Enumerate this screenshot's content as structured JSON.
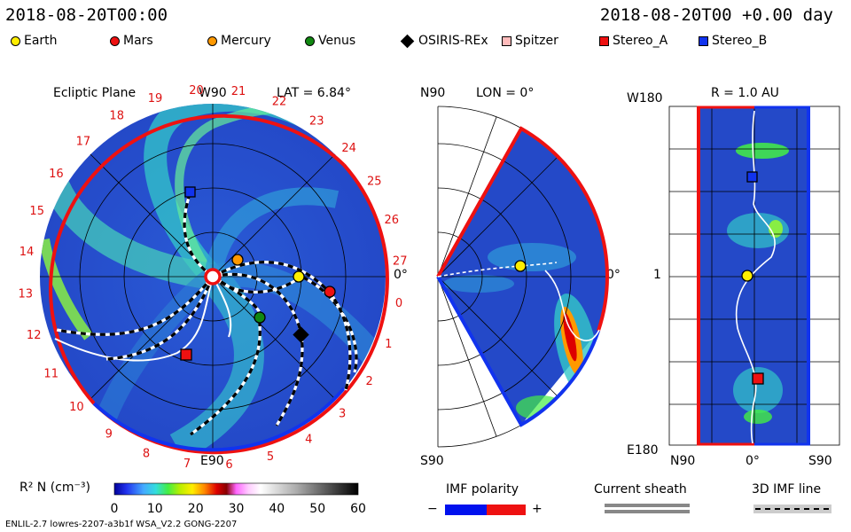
{
  "header": {
    "left_time": "2018-08-20T00:00",
    "right_time": "2018-08-20T00 +0.00 day"
  },
  "legend": [
    {
      "name": "Earth",
      "color": "#ffee00",
      "shape": "circle"
    },
    {
      "name": "Mars",
      "color": "#ee1111",
      "shape": "circle"
    },
    {
      "name": "Mercury",
      "color": "#ff9900",
      "shape": "circle"
    },
    {
      "name": "Venus",
      "color": "#118811",
      "shape": "circle"
    },
    {
      "name": "OSIRIS-REx",
      "color": "#000000",
      "shape": "diamond"
    },
    {
      "name": "Spitzer",
      "color": "#ffbbbb",
      "shape": "square"
    },
    {
      "name": "Stereo_A",
      "color": "#ee1111",
      "shape": "square"
    },
    {
      "name": "Stereo_B",
      "color": "#1133ee",
      "shape": "square"
    }
  ],
  "panels": {
    "ecliptic": {
      "title": "Ecliptic Plane",
      "top_label": "W90",
      "lat_label": "LAT = 6.84°",
      "bottom_label": "E90",
      "right_label": "0°",
      "carrington": [
        "20",
        "21",
        "22",
        "23",
        "24",
        "25",
        "26",
        "27",
        "0",
        "1",
        "2",
        "3",
        "4",
        "5",
        "6",
        "7",
        "8",
        "9",
        "10",
        "11",
        "12",
        "13",
        "14",
        "15",
        "16",
        "17",
        "18",
        "19"
      ]
    },
    "meridional": {
      "top_left": "N90",
      "lon_label": "LON = 0°",
      "bottom_left": "S90",
      "right_label": "0°"
    },
    "radial": {
      "r_label": "R = 1.0 AU",
      "top_left": "W180",
      "mid_left": "1",
      "bottom_left": "E180",
      "bottom_labels": [
        "N90",
        "0°",
        "S90"
      ]
    }
  },
  "colorbar": {
    "label": "R² N (cm⁻³)",
    "ticks": [
      "0",
      "10",
      "20",
      "30",
      "40",
      "50",
      "60"
    ]
  },
  "imf_polarity": {
    "label": "IMF polarity",
    "minus": "−",
    "plus": "+",
    "neg_color": "#0011ee",
    "pos_color": "#ee1111"
  },
  "current_sheath": {
    "label": "Current sheath"
  },
  "imf_line": {
    "label": "3D IMF line"
  },
  "footer": "ENLIL-2.7 lowres-2207-a3b1f WSA_V2.2 GONG-2207",
  "chart_data": {
    "type": "heatmap",
    "title": "",
    "quantity": "R² N (cm⁻³)",
    "color_range": [
      0,
      60
    ],
    "time": "2018-08-20T00:00",
    "bodies": [
      {
        "name": "Earth",
        "ecliptic_angle_deg": 0
      },
      {
        "name": "Mars",
        "ecliptic_angle_deg": -17
      },
      {
        "name": "Mercury",
        "ecliptic_angle_deg": 55
      },
      {
        "name": "Venus",
        "ecliptic_angle_deg": -48
      },
      {
        "name": "OSIRIS-REx",
        "ecliptic_angle_deg": -33
      },
      {
        "name": "Stereo_A",
        "ecliptic_angle_deg": -142
      },
      {
        "name": "Stereo_B",
        "ecliptic_angle_deg": 128
      }
    ],
    "grid": true,
    "legend_position": "top"
  }
}
